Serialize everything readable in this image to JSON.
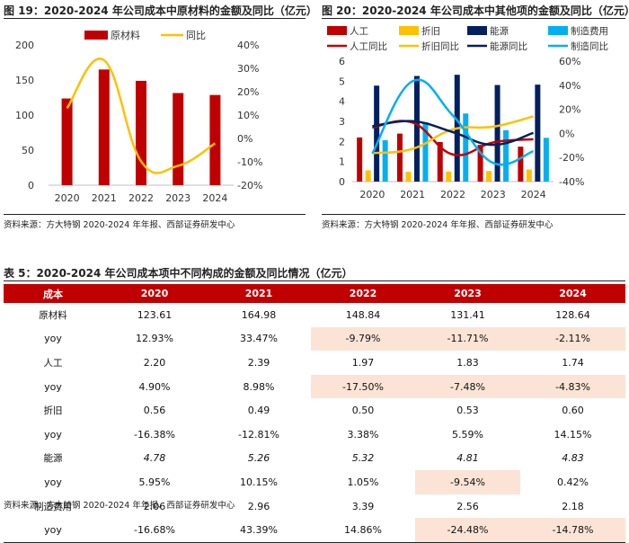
{
  "fig19": {
    "title": "图 19：2020-2024 年公司成本中原材料的金额及同比（亿元）",
    "source": "资料来源：方大特钢 2020-2024 年年报、西部证券研发中心",
    "legend": [
      "原材料",
      "同比"
    ]
  },
  "fig20": {
    "title": "图 20：2020-2024 年公司成本中其他项的金额及同比（亿元）",
    "source": "资料来源：方大特钢 2020-2024 年年报、西部证券研发中心",
    "legend": [
      "人工",
      "折旧",
      "能源",
      "制造费用",
      "人工同比",
      "折旧同比",
      "能源同比",
      "制造同比"
    ]
  },
  "table5": {
    "title": "表 5：2020-2024 年公司成本项中不同构成的金额及同比情况（亿元）",
    "source": "资料来源：方大特钢 2020-2024 年年报、西部证券研发中心",
    "headers": [
      "成本",
      "2020",
      "2021",
      "2022",
      "2023",
      "2024"
    ],
    "rows": [
      {
        "label": "原材料",
        "values": [
          "123.61",
          "164.98",
          "148.84",
          "131.41",
          "128.64"
        ]
      },
      {
        "label": "yoy",
        "values": [
          "12.93%",
          "33.47%",
          "-9.79%",
          "-11.71%",
          "-2.11%"
        ]
      },
      {
        "label": "人工",
        "values": [
          "2.20",
          "2.39",
          "1.97",
          "1.83",
          "1.74"
        ]
      },
      {
        "label": "yoy",
        "values": [
          "4.90%",
          "8.98%",
          "-17.50%",
          "-7.48%",
          "-4.83%"
        ]
      },
      {
        "label": "折旧",
        "values": [
          "0.56",
          "0.49",
          "0.50",
          "0.53",
          "0.60"
        ]
      },
      {
        "label": "yoy",
        "values": [
          "-16.38%",
          "-12.81%",
          "3.38%",
          "5.59%",
          "14.15%"
        ]
      },
      {
        "label": "能源",
        "values": [
          "4.78",
          "5.26",
          "5.32",
          "4.81",
          "4.83"
        ]
      },
      {
        "label": "yoy",
        "values": [
          "5.95%",
          "10.15%",
          "1.05%",
          "-9.54%",
          "0.42%"
        ]
      },
      {
        "label": "制造费用",
        "values": [
          "2.06",
          "2.96",
          "3.39",
          "2.56",
          "2.18"
        ]
      },
      {
        "label": "yoy",
        "values": [
          "-16.68%",
          "43.39%",
          "14.86%",
          "-24.48%",
          "-14.78%"
        ]
      }
    ]
  },
  "chart_data": [
    {
      "type": "bar",
      "title": "原材料的金额及同比",
      "categories": [
        "2020",
        "2021",
        "2022",
        "2023",
        "2024"
      ],
      "series": [
        {
          "name": "原材料",
          "axis": "left",
          "values": [
            123.61,
            164.98,
            148.84,
            131.41,
            128.64
          ]
        },
        {
          "name": "同比",
          "axis": "right",
          "kind": "line",
          "values": [
            12.93,
            33.47,
            -9.79,
            -11.71,
            -2.11
          ]
        }
      ],
      "ylim": [
        0,
        200
      ],
      "yticks": [
        "0",
        "50",
        "100",
        "150",
        "200"
      ],
      "y2lim": [
        -20,
        40
      ],
      "y2ticks": [
        "-20%",
        "-10%",
        "0%",
        "10%",
        "20%",
        "30%",
        "40%"
      ],
      "colors": {
        "bar": "#c00000",
        "line": "#ffc000"
      }
    },
    {
      "type": "bar",
      "title": "其他项的金额及同比",
      "categories": [
        "2020",
        "2021",
        "2022",
        "2023",
        "2024"
      ],
      "series": [
        {
          "name": "人工",
          "axis": "left",
          "values": [
            2.2,
            2.39,
            1.97,
            1.83,
            1.74
          ]
        },
        {
          "name": "折旧",
          "axis": "left",
          "values": [
            0.56,
            0.49,
            0.5,
            0.53,
            0.6
          ]
        },
        {
          "name": "能源",
          "axis": "left",
          "values": [
            4.78,
            5.26,
            5.32,
            4.81,
            4.83
          ]
        },
        {
          "name": "制造费用",
          "axis": "left",
          "values": [
            2.06,
            2.96,
            3.39,
            2.56,
            2.18
          ]
        },
        {
          "name": "人工同比",
          "axis": "right",
          "kind": "line",
          "values": [
            4.9,
            8.98,
            -17.5,
            -7.48,
            -4.83
          ]
        },
        {
          "name": "折旧同比",
          "axis": "right",
          "kind": "line",
          "values": [
            -16.38,
            -12.81,
            3.38,
            5.59,
            14.15
          ]
        },
        {
          "name": "能源同比",
          "axis": "right",
          "kind": "line",
          "values": [
            5.95,
            10.15,
            1.05,
            -9.54,
            0.42
          ]
        },
        {
          "name": "制造同比",
          "axis": "right",
          "kind": "line",
          "values": [
            -16.68,
            43.39,
            14.86,
            -24.48,
            -14.78
          ]
        }
      ],
      "ylim": [
        0,
        6
      ],
      "yticks": [
        "0",
        "1",
        "2",
        "3",
        "4",
        "5",
        "6"
      ],
      "y2lim": [
        -40,
        60
      ],
      "y2ticks": [
        "-40%",
        "-20%",
        "0%",
        "20%",
        "40%",
        "60%"
      ],
      "colors": {
        "人工": "#c00000",
        "折旧": "#ffc000",
        "能源": "#002060",
        "制造费用": "#00b0f0",
        "人工同比": "#c00000",
        "折旧同比": "#ffc000",
        "能源同比": "#002060",
        "制造同比": "#00b0f0"
      }
    }
  ]
}
